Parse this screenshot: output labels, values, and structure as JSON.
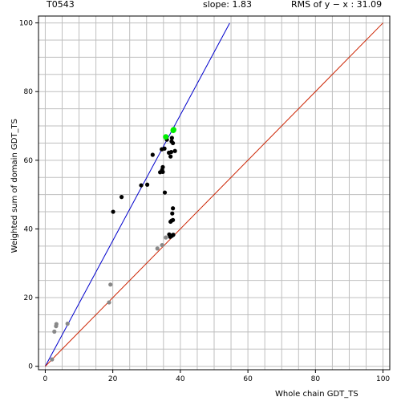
{
  "header": {
    "target_id": "T0543",
    "slope_text": "slope: 1.83",
    "rms_text": "RMS of  y − x : 31.09"
  },
  "chart_data": {
    "type": "scatter",
    "title": "",
    "xlabel": "Whole chain GDT_TS",
    "ylabel": "Weighted sum of domain GDT_TS",
    "xlim": [
      -2,
      102
    ],
    "ylim": [
      -1,
      102
    ],
    "xticks": [
      0,
      20,
      40,
      60,
      80,
      100
    ],
    "yticks": [
      0,
      20,
      40,
      60,
      80,
      100
    ],
    "grid": true,
    "grid_color": "#bfbfbf",
    "lines": [
      {
        "name": "fit",
        "slope": 1.83,
        "x_range": [
          0,
          54.6
        ],
        "color": "#0000cc"
      },
      {
        "name": "diagonal",
        "slope": 1.0,
        "x_range": [
          0,
          100
        ],
        "color": "#cc2200"
      }
    ],
    "series": [
      {
        "color": "#000000",
        "points": [
          [
            37.5,
            66.5
          ],
          [
            37.4,
            65.5
          ],
          [
            37.8,
            65.0
          ],
          [
            36.0,
            66.0
          ],
          [
            34.5,
            63.2
          ],
          [
            35.3,
            63.4
          ],
          [
            36.6,
            62.2
          ],
          [
            37.3,
            62.4
          ],
          [
            38.4,
            62.7
          ],
          [
            31.8,
            61.6
          ],
          [
            37.1,
            61.1
          ],
          [
            34.8,
            58.0
          ],
          [
            34.6,
            57.2
          ],
          [
            34.0,
            56.5
          ],
          [
            34.8,
            56.6
          ],
          [
            28.4,
            52.7
          ],
          [
            30.2,
            52.9
          ],
          [
            35.4,
            50.6
          ],
          [
            22.6,
            49.3
          ],
          [
            20.1,
            45.0
          ],
          [
            37.8,
            46.0
          ],
          [
            37.6,
            44.5
          ],
          [
            37.4,
            42.4
          ],
          [
            37.8,
            42.6
          ],
          [
            37.1,
            42.1
          ],
          [
            36.9,
            38.2
          ],
          [
            37.5,
            38.0
          ],
          [
            37.9,
            38.3
          ],
          [
            37.2,
            37.9
          ],
          [
            36.7,
            38.4
          ],
          [
            37.0,
            37.7
          ]
        ]
      },
      {
        "color": "#888888",
        "points": [
          [
            35.7,
            37.5
          ],
          [
            34.6,
            35.3
          ],
          [
            33.2,
            34.3
          ],
          [
            19.3,
            23.8
          ],
          [
            18.9,
            18.6
          ],
          [
            6.6,
            12.4
          ],
          [
            3.3,
            12.3
          ],
          [
            3.2,
            11.7
          ],
          [
            2.7,
            10.1
          ],
          [
            2.0,
            2.0
          ]
        ]
      },
      {
        "color": "#00ee00",
        "points": [
          [
            35.7,
            66.8
          ],
          [
            37.9,
            68.7
          ],
          [
            38.0,
            68.9
          ]
        ]
      }
    ]
  }
}
